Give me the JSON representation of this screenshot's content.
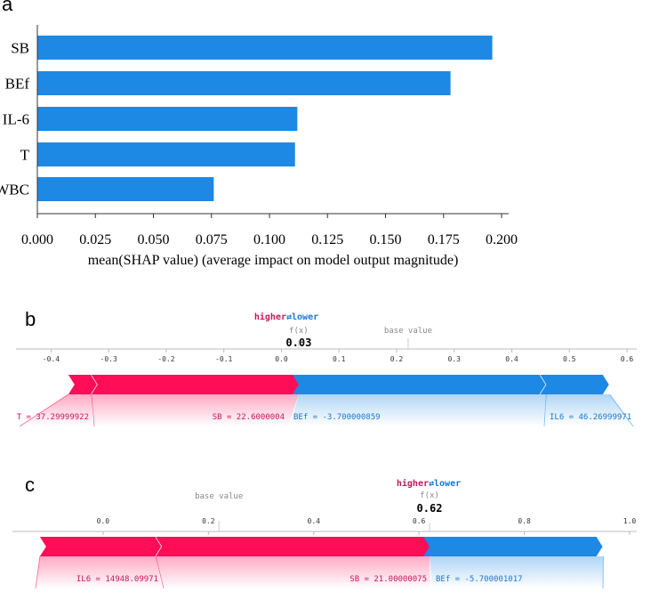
{
  "colors": {
    "bar": "#1e88e5",
    "red": "#ff0d57",
    "blue": "#1e88e5",
    "redText": "#c2185b",
    "blueText": "#1976d2",
    "grey": "#888888",
    "axis": "#333333"
  },
  "chart_data": [
    {
      "panel": "a",
      "type": "bar",
      "orientation": "horizontal",
      "categories": [
        "SB",
        "BEf",
        "IL-6",
        "T",
        "WBC"
      ],
      "values": [
        0.196,
        0.178,
        0.112,
        0.111,
        0.076
      ],
      "xlabel": "mean(SHAP value) (average impact on model output magnitude)",
      "xticks": [
        "0.000",
        "0.025",
        "0.050",
        "0.075",
        "0.100",
        "0.125",
        "0.150",
        "0.175",
        "0.200"
      ],
      "xlim": [
        0,
        0.2
      ]
    },
    {
      "panel": "b",
      "type": "force",
      "legend_higher": "higher",
      "legend_arrow": "⇄",
      "legend_lower": "lower",
      "fx_label": "f(x)",
      "fx_value": "0.03",
      "fx": 0.03,
      "base_label": "base value",
      "base_value": 0.22,
      "xlim": [
        -0.43,
        0.6
      ],
      "xticks": [
        "-0.4",
        "-0.3",
        "-0.2",
        "-0.1",
        "0.0",
        "0.1",
        "0.2",
        "0.3",
        "0.4",
        "0.5",
        "0.6"
      ],
      "xtick_values": [
        -0.4,
        -0.3,
        -0.2,
        -0.1,
        0.0,
        0.1,
        0.2,
        0.3,
        0.4,
        0.5,
        0.6
      ],
      "features": [
        {
          "label": "T = 37.29999922",
          "from": -0.37,
          "to": -0.33,
          "effect": "higher"
        },
        {
          "label": "SB = 22.6000004",
          "from": -0.33,
          "to": 0.03,
          "effect": "higher"
        },
        {
          "label": "BEf = -3.700000859",
          "from": 0.03,
          "to": 0.46,
          "effect": "lower"
        },
        {
          "label": "IL6 = 46.26999971",
          "from": 0.46,
          "to": 0.57,
          "effect": "lower"
        }
      ]
    },
    {
      "panel": "c",
      "type": "force",
      "legend_higher": "higher",
      "legend_arrow": "⇄",
      "legend_lower": "lower",
      "fx_label": "f(x)",
      "fx_value": "0.62",
      "fx": 0.62,
      "base_label": "base value",
      "base_value": 0.22,
      "xlim": [
        -0.14,
        1.0
      ],
      "xticks": [
        "0.0",
        "0.2",
        "0.4",
        "0.6",
        "0.8",
        "1.0"
      ],
      "xtick_values": [
        0.0,
        0.2,
        0.4,
        0.6,
        0.8,
        1.0
      ],
      "features": [
        {
          "label": "IL6 = 14948.09971",
          "from": -0.12,
          "to": 0.1,
          "effect": "higher"
        },
        {
          "label": "SB = 21.00000075",
          "from": 0.1,
          "to": 0.62,
          "effect": "higher"
        },
        {
          "label": "BEf = -5.700001017",
          "from": 0.62,
          "to": 0.95,
          "effect": "lower"
        }
      ]
    }
  ],
  "panel_labels": [
    "a",
    "b",
    "c"
  ]
}
